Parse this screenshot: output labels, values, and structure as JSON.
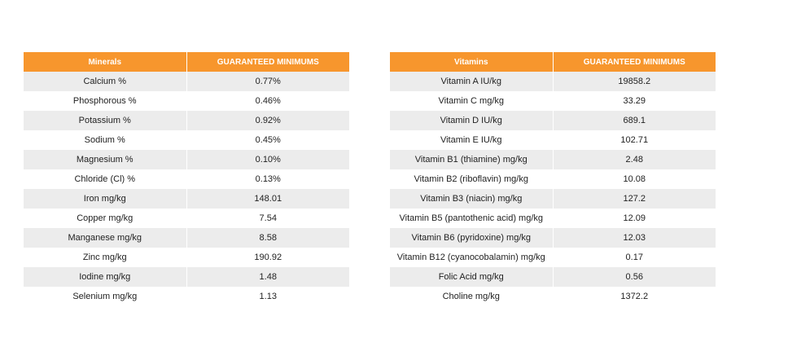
{
  "minerals_table": {
    "headers": [
      "Minerals",
      "GUARANTEED MINIMUMS"
    ],
    "rows": [
      [
        "Calcium %",
        "0.77%"
      ],
      [
        "Phosphorous %",
        "0.46%"
      ],
      [
        "Potassium %",
        "0.92%"
      ],
      [
        "Sodium %",
        "0.45%"
      ],
      [
        "Magnesium %",
        "0.10%"
      ],
      [
        "Chloride (Cl) %",
        "0.13%"
      ],
      [
        "Iron mg/kg",
        "148.01"
      ],
      [
        "Copper mg/kg",
        "7.54"
      ],
      [
        "Manganese mg/kg",
        "8.58"
      ],
      [
        "Zinc mg/kg",
        "190.92"
      ],
      [
        "Iodine mg/kg",
        "1.48"
      ],
      [
        "Selenium mg/kg",
        "1.13"
      ]
    ]
  },
  "vitamins_table": {
    "headers": [
      "Vitamins",
      "GUARANTEED MINIMUMS"
    ],
    "rows": [
      [
        "Vitamin A IU/kg",
        "19858.2"
      ],
      [
        "Vitamin C mg/kg",
        "33.29"
      ],
      [
        "Vitamin D IU/kg",
        "689.1"
      ],
      [
        "Vitamin E IU/kg",
        "102.71"
      ],
      [
        "Vitamin B1 (thiamine) mg/kg",
        "2.48"
      ],
      [
        "Vitamin B2 (riboflavin) mg/kg",
        "10.08"
      ],
      [
        "Vitamin B3 (niacin) mg/kg",
        "127.2"
      ],
      [
        "Vitamin B5 (pantothenic acid) mg/kg",
        "12.09"
      ],
      [
        "Vitamin B6 (pyridoxine) mg/kg",
        "12.03"
      ],
      [
        "Vitamin B12 (cyanocobalamin) mg/kg",
        "0.17"
      ],
      [
        "Folic Acid mg/kg",
        "0.56"
      ],
      [
        "Choline mg/kg",
        "1372.2"
      ]
    ]
  },
  "colors": {
    "header_background": "#f7962d",
    "header_text": "#ffffff",
    "stripe_row": "#ececec",
    "plain_row": "#ffffff"
  }
}
